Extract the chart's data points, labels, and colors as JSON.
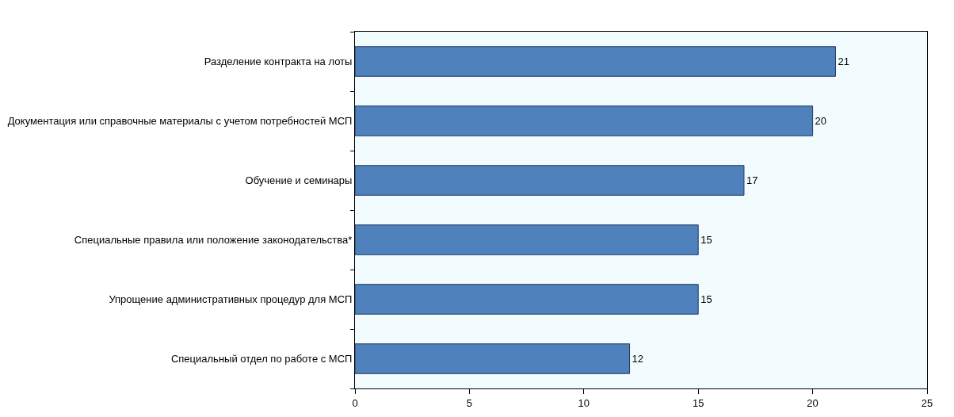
{
  "chart_data": {
    "type": "bar",
    "orientation": "horizontal",
    "categories": [
      "Разделение контракта на лоты",
      "Документация или справочные материалы с учетом потребностей МСП",
      "Обучение и семинары",
      "Специальные правила или положение законодательства*",
      "Упрощение административных процедур для МСП",
      "Специальный отдел по работе с МСП"
    ],
    "values": [
      21,
      20,
      17,
      15,
      15,
      12
    ],
    "color": "#4f81bd",
    "xlim": [
      0,
      25
    ],
    "xticks": [
      0,
      5,
      10,
      15,
      20,
      25
    ],
    "data_labels": true,
    "grid": false,
    "legend": false
  }
}
